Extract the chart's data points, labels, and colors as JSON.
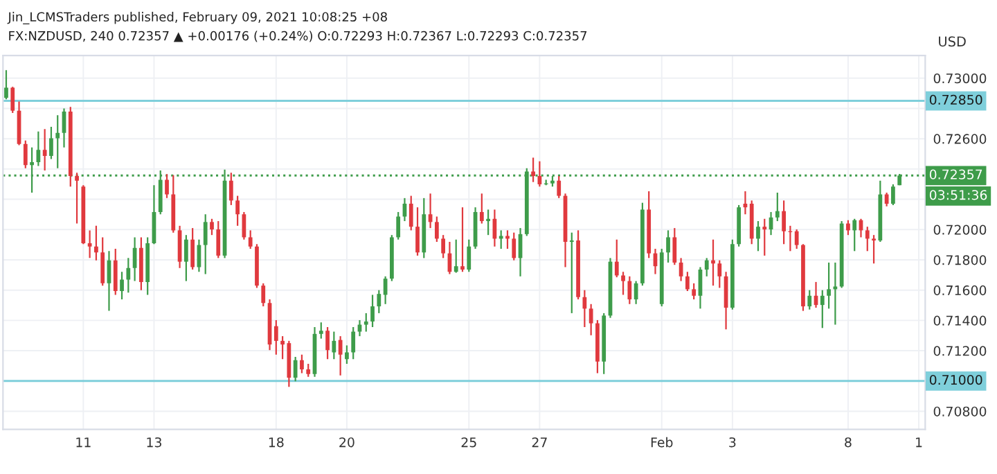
{
  "chart_data": {
    "type": "candlestick",
    "title": "Jin_LCMSTraders published, February 09, 2021 10:08:25 +08",
    "subtitle": "FX:NZDUSD, 240 0.72357 ▲ +0.00176 (+0.24%) O:0.72293 H:0.72367 L:0.72293 C:0.72357",
    "annotations": [
      "USD",
      "03:51:36"
    ],
    "categories": [
      null,
      null,
      null,
      null,
      null,
      null,
      null,
      null,
      null,
      null,
      null,
      null,
      "11",
      null,
      null,
      null,
      null,
      null,
      null,
      null,
      null,
      null,
      null,
      "13",
      null,
      null,
      null,
      null,
      null,
      null,
      null,
      null,
      null,
      null,
      null,
      null,
      null,
      null,
      null,
      null,
      null,
      null,
      "18",
      null,
      null,
      null,
      null,
      null,
      null,
      null,
      null,
      null,
      null,
      "20",
      null,
      null,
      null,
      null,
      null,
      null,
      null,
      null,
      null,
      null,
      null,
      null,
      null,
      null,
      null,
      null,
      null,
      null,
      "25",
      null,
      null,
      null,
      null,
      null,
      null,
      null,
      null,
      null,
      null,
      "27",
      null,
      null,
      null,
      null,
      null,
      null,
      null,
      null,
      null,
      null,
      null,
      null,
      null,
      null,
      null,
      null,
      null,
      null,
      "Feb",
      null,
      null,
      null,
      null,
      null,
      null,
      null,
      null,
      null,
      null,
      "3",
      null,
      null,
      null,
      null,
      null,
      null,
      null,
      null,
      null,
      null,
      null,
      null,
      null,
      null,
      null,
      null,
      null,
      "8",
      null,
      null,
      null,
      null,
      null,
      null,
      null,
      null,
      null,
      null,
      "1"
    ],
    "ohlc": [
      [
        0.7287,
        0.73053,
        0.72861,
        0.72937
      ],
      [
        0.72937,
        0.72943,
        0.7277,
        0.72785
      ],
      [
        0.72785,
        0.72846,
        0.72557,
        0.72566
      ],
      [
        0.72566,
        0.72588,
        0.72405,
        0.72426
      ],
      [
        0.72426,
        0.72542,
        0.72244,
        0.72445
      ],
      [
        0.72445,
        0.72648,
        0.7242,
        0.72527
      ],
      [
        0.72527,
        0.72664,
        0.7239,
        0.72487
      ],
      [
        0.72487,
        0.72679,
        0.72466,
        0.72603
      ],
      [
        0.72603,
        0.72755,
        0.72405,
        0.72639
      ],
      [
        0.72639,
        0.728,
        0.72542,
        0.72779
      ],
      [
        0.72779,
        0.7281,
        0.72284,
        0.72354
      ],
      [
        0.72354,
        0.72375,
        0.7204,
        0.72323
      ],
      [
        0.72284,
        0.72293,
        0.71904,
        0.7191
      ],
      [
        0.7191,
        0.71995,
        0.71812,
        0.71888
      ],
      [
        0.71888,
        0.72025,
        0.71797,
        0.71849
      ],
      [
        0.71849,
        0.71949,
        0.7163,
        0.71645
      ],
      [
        0.71645,
        0.71858,
        0.71463,
        0.71797
      ],
      [
        0.71797,
        0.71873,
        0.71569,
        0.71594
      ],
      [
        0.71594,
        0.71721,
        0.71539,
        0.7167
      ],
      [
        0.7167,
        0.71812,
        0.71584,
        0.71746
      ],
      [
        0.71746,
        0.71949,
        0.7166,
        0.71879
      ],
      [
        0.71879,
        0.71949,
        0.716,
        0.71654
      ],
      [
        0.71654,
        0.71949,
        0.71569,
        0.7191
      ],
      [
        0.7191,
        0.72293,
        0.71904,
        0.72116
      ],
      [
        0.72116,
        0.7239,
        0.72101,
        0.72329
      ],
      [
        0.72329,
        0.72366,
        0.72208,
        0.72232
      ],
      [
        0.72232,
        0.7236,
        0.7198,
        0.71995
      ],
      [
        0.71995,
        0.72025,
        0.71746,
        0.71788
      ],
      [
        0.71788,
        0.71964,
        0.7166,
        0.71934
      ],
      [
        0.71934,
        0.7201,
        0.71736,
        0.71752
      ],
      [
        0.71752,
        0.71934,
        0.71721,
        0.71898
      ],
      [
        0.71898,
        0.72101,
        0.71706,
        0.7205
      ],
      [
        0.7205,
        0.72071,
        0.71964,
        0.72001
      ],
      [
        0.72001,
        0.72056,
        0.71812,
        0.71828
      ],
      [
        0.71828,
        0.72396,
        0.71812,
        0.72323
      ],
      [
        0.72323,
        0.72375,
        0.72162,
        0.72192
      ],
      [
        0.72192,
        0.72223,
        0.72025,
        0.72101
      ],
      [
        0.72101,
        0.72116,
        0.71934,
        0.71949
      ],
      [
        0.71949,
        0.71995,
        0.71873,
        0.71888
      ],
      [
        0.71888,
        0.71904,
        0.71615,
        0.7163
      ],
      [
        0.7163,
        0.71645,
        0.71493,
        0.71515
      ],
      [
        0.71515,
        0.71539,
        0.71204,
        0.71241
      ],
      [
        0.71362,
        0.71402,
        0.71174,
        0.71265
      ],
      [
        0.71265,
        0.71296,
        0.71144,
        0.71241
      ],
      [
        0.7125,
        0.71265,
        0.70961,
        0.71022
      ],
      [
        0.71022,
        0.71159,
        0.70998,
        0.71138
      ],
      [
        0.71138,
        0.71174,
        0.71052,
        0.71077
      ],
      [
        0.71077,
        0.71113,
        0.71028,
        0.71046
      ],
      [
        0.71046,
        0.71356,
        0.71028,
        0.71311
      ],
      [
        0.71311,
        0.71387,
        0.7128,
        0.71332
      ],
      [
        0.71332,
        0.71356,
        0.71144,
        0.71204
      ],
      [
        0.71189,
        0.71326,
        0.71144,
        0.71265
      ],
      [
        0.71271,
        0.71296,
        0.71037,
        0.71174
      ],
      [
        0.71144,
        0.71235,
        0.71113,
        0.71189
      ],
      [
        0.71189,
        0.71356,
        0.71144,
        0.71326
      ],
      [
        0.71326,
        0.71402,
        0.71296,
        0.71372
      ],
      [
        0.71372,
        0.71448,
        0.71326,
        0.71393
      ],
      [
        0.71393,
        0.71569,
        0.71356,
        0.71493
      ],
      [
        0.71493,
        0.716,
        0.71448,
        0.71575
      ],
      [
        0.71569,
        0.71691,
        0.71508,
        0.71676
      ],
      [
        0.71676,
        0.71964,
        0.7166,
        0.71949
      ],
      [
        0.71949,
        0.72116,
        0.71934,
        0.72086
      ],
      [
        0.72086,
        0.72208,
        0.72056,
        0.72171
      ],
      [
        0.72171,
        0.72223,
        0.71995,
        0.72019
      ],
      [
        0.72019,
        0.72147,
        0.71828,
        0.71849
      ],
      [
        0.71849,
        0.72208,
        0.71812,
        0.72101
      ],
      [
        0.72101,
        0.72238,
        0.7201,
        0.7205
      ],
      [
        0.7205,
        0.72086,
        0.71919,
        0.7194
      ],
      [
        0.7194,
        0.71964,
        0.71812,
        0.71843
      ],
      [
        0.71843,
        0.71919,
        0.71706,
        0.71721
      ],
      [
        0.71721,
        0.71934,
        0.71715,
        0.71758
      ],
      [
        0.71758,
        0.72147,
        0.71721,
        0.71736
      ],
      [
        0.71736,
        0.71934,
        0.71721,
        0.71888
      ],
      [
        0.71888,
        0.72147,
        0.71873,
        0.72116
      ],
      [
        0.72116,
        0.72238,
        0.7204,
        0.72056
      ],
      [
        0.72056,
        0.72132,
        0.71964,
        0.72071
      ],
      [
        0.72071,
        0.72132,
        0.71888,
        0.7194
      ],
      [
        0.7194,
        0.71995,
        0.71873,
        0.71958
      ],
      [
        0.71958,
        0.71995,
        0.71873,
        0.7194
      ],
      [
        0.7194,
        0.7198,
        0.71797,
        0.71812
      ],
      [
        0.71812,
        0.7201,
        0.71691,
        0.7197
      ],
      [
        0.7197,
        0.72405,
        0.71958,
        0.72384
      ],
      [
        0.72384,
        0.72475,
        0.72314,
        0.72354
      ],
      [
        0.72354,
        0.72451,
        0.72284,
        0.72299
      ],
      [
        0.72299,
        0.72329,
        0.72293,
        0.72305
      ],
      [
        0.72305,
        0.72354,
        0.72284,
        0.72323
      ],
      [
        0.72323,
        0.72354,
        0.72208,
        0.72223
      ],
      [
        0.72223,
        0.72238,
        0.71752,
        0.71919
      ],
      [
        0.71919,
        0.7198,
        0.71448,
        0.71928
      ],
      [
        0.71928,
        0.71995,
        0.71539,
        0.71554
      ],
      [
        0.71554,
        0.716,
        0.71356,
        0.71478
      ],
      [
        0.71478,
        0.71508,
        0.71302,
        0.71381
      ],
      [
        0.71381,
        0.71402,
        0.71052,
        0.71128
      ],
      [
        0.71128,
        0.71448,
        0.71046,
        0.71432
      ],
      [
        0.71432,
        0.71812,
        0.71417,
        0.71788
      ],
      [
        0.71788,
        0.71934,
        0.71685,
        0.71697
      ],
      [
        0.71697,
        0.71721,
        0.71569,
        0.7166
      ],
      [
        0.7166,
        0.71691,
        0.71508,
        0.71539
      ],
      [
        0.71539,
        0.7166,
        0.71508,
        0.71645
      ],
      [
        0.71645,
        0.72177,
        0.7163,
        0.72132
      ],
      [
        0.72132,
        0.72253,
        0.71812,
        0.71843
      ],
      [
        0.71843,
        0.71873,
        0.71706,
        0.71758
      ],
      [
        0.71508,
        0.71873,
        0.71493,
        0.71849
      ],
      [
        0.71849,
        0.71995,
        0.71782,
        0.71949
      ],
      [
        0.71949,
        0.7201,
        0.71767,
        0.71782
      ],
      [
        0.71782,
        0.71812,
        0.7166,
        0.71691
      ],
      [
        0.71691,
        0.71721,
        0.71594,
        0.71606
      ],
      [
        0.71606,
        0.71645,
        0.71539,
        0.71563
      ],
      [
        0.71563,
        0.71752,
        0.71478,
        0.71736
      ],
      [
        0.71736,
        0.71812,
        0.71691,
        0.71797
      ],
      [
        0.71797,
        0.71934,
        0.7163,
        0.71776
      ],
      [
        0.71776,
        0.71797,
        0.71615,
        0.71691
      ],
      [
        0.71691,
        0.71721,
        0.71341,
        0.71484
      ],
      [
        0.71484,
        0.71934,
        0.71472,
        0.71904
      ],
      [
        0.71904,
        0.72162,
        0.71888,
        0.72147
      ],
      [
        0.72171,
        0.72253,
        0.72101,
        0.72147
      ],
      [
        0.72171,
        0.72192,
        0.71904,
        0.7194
      ],
      [
        0.7194,
        0.72056,
        0.71858,
        0.72019
      ],
      [
        0.72019,
        0.72071,
        0.71828,
        0.72001
      ],
      [
        0.72001,
        0.72116,
        0.71964,
        0.7208
      ],
      [
        0.7208,
        0.72244,
        0.72056,
        0.72122
      ],
      [
        0.72122,
        0.72192,
        0.71904,
        0.71989
      ],
      [
        0.71989,
        0.72025,
        0.71858,
        0.71983
      ],
      [
        0.71989,
        0.72001,
        0.71873,
        0.71898
      ],
      [
        0.71898,
        0.71904,
        0.71463,
        0.71493
      ],
      [
        0.71493,
        0.716,
        0.71472,
        0.71563
      ],
      [
        0.71563,
        0.71654,
        0.71484,
        0.71502
      ],
      [
        0.71502,
        0.716,
        0.7135,
        0.71563
      ],
      [
        0.71563,
        0.71782,
        0.71478,
        0.71606
      ],
      [
        0.71606,
        0.71782,
        0.71372,
        0.71624
      ],
      [
        0.71624,
        0.72056,
        0.71615,
        0.7204
      ],
      [
        0.7204,
        0.72062,
        0.71964,
        0.71995
      ],
      [
        0.71995,
        0.72071,
        0.71858,
        0.72062
      ],
      [
        0.72062,
        0.72071,
        0.71949,
        0.71995
      ],
      [
        0.71995,
        0.72019,
        0.71858,
        0.7194
      ],
      [
        0.7194,
        0.71964,
        0.71776,
        0.71928
      ],
      [
        0.71928,
        0.72323,
        0.71919,
        0.72232
      ],
      [
        0.72232,
        0.72244,
        0.72153,
        0.72171
      ],
      [
        0.72171,
        0.72299,
        0.72162,
        0.72284
      ],
      [
        0.72293,
        0.72367,
        0.72293,
        0.72357
      ],
      null,
      null,
      null
    ],
    "colors": [
      "#3e9c4a",
      "#e0393e",
      "#e0393e",
      "#e0393e",
      "#3e9c4a",
      "#3e9c4a",
      "#e0393e",
      "#3e9c4a",
      "#3e9c4a",
      "#3e9c4a",
      "#e0393e",
      "#e0393e",
      "#e0393e",
      "#e0393e",
      "#e0393e",
      "#e0393e",
      "#3e9c4a",
      "#e0393e",
      "#3e9c4a",
      "#3e9c4a",
      "#3e9c4a",
      "#e0393e",
      "#3e9c4a",
      "#3e9c4a",
      "#3e9c4a",
      "#e0393e",
      "#e0393e",
      "#e0393e",
      "#3e9c4a",
      "#e0393e",
      "#3e9c4a",
      "#3e9c4a",
      "#e0393e",
      "#e0393e",
      "#3e9c4a",
      "#e0393e",
      "#e0393e",
      "#e0393e",
      "#e0393e",
      "#e0393e",
      "#e0393e",
      "#e0393e",
      "#e0393e",
      "#e0393e",
      "#e0393e",
      "#3e9c4a",
      "#e0393e",
      "#e0393e",
      "#3e9c4a",
      "#3e9c4a",
      "#e0393e",
      "#3e9c4a",
      "#e0393e",
      "#3e9c4a",
      "#3e9c4a",
      "#3e9c4a",
      "#3e9c4a",
      "#3e9c4a",
      "#3e9c4a",
      "#3e9c4a",
      "#3e9c4a",
      "#3e9c4a",
      "#3e9c4a",
      "#e0393e",
      "#e0393e",
      "#3e9c4a",
      "#e0393e",
      "#e0393e",
      "#e0393e",
      "#e0393e",
      "#3e9c4a",
      "#e0393e",
      "#3e9c4a",
      "#3e9c4a",
      "#e0393e",
      "#3e9c4a",
      "#e0393e",
      "#3e9c4a",
      "#e0393e",
      "#e0393e",
      "#3e9c4a",
      "#3e9c4a",
      "#e0393e",
      "#e0393e",
      "#3e9c4a",
      "#3e9c4a",
      "#e0393e",
      "#e0393e",
      "#3e9c4a",
      "#e0393e",
      "#e0393e",
      "#e0393e",
      "#e0393e",
      "#3e9c4a",
      "#3e9c4a",
      "#e0393e",
      "#e0393e",
      "#e0393e",
      "#3e9c4a",
      "#3e9c4a",
      "#e0393e",
      "#e0393e",
      "#3e9c4a",
      "#3e9c4a",
      "#e0393e",
      "#e0393e",
      "#e0393e",
      "#e0393e",
      "#3e9c4a",
      "#3e9c4a",
      "#e0393e",
      "#e0393e",
      "#e0393e",
      "#3e9c4a",
      "#3e9c4a",
      "#e0393e",
      "#e0393e",
      "#3e9c4a",
      "#e0393e",
      "#3e9c4a",
      "#3e9c4a",
      "#e0393e",
      "#e0393e",
      "#e0393e",
      "#e0393e",
      "#3e9c4a",
      "#e0393e",
      "#3e9c4a",
      "#3e9c4a",
      "#3e9c4a",
      "#3e9c4a",
      "#e0393e",
      "#3e9c4a",
      "#e0393e",
      "#e0393e",
      "#e0393e",
      "#3e9c4a",
      "#e0393e",
      "#3e9c4a",
      "#3e9c4a",
      null,
      null,
      null
    ],
    "ylim": [
      0.7068,
      0.7315
    ],
    "yticks": [
      {
        "value": 0.708,
        "label": "0.70800"
      },
      {
        "value": 0.71,
        "label": null
      },
      {
        "value": 0.712,
        "label": "0.71200"
      },
      {
        "value": 0.714,
        "label": "0.71400"
      },
      {
        "value": 0.716,
        "label": "0.71600"
      },
      {
        "value": 0.718,
        "label": "0.71800"
      },
      {
        "value": 0.72,
        "label": "0.72000"
      },
      {
        "value": 0.722,
        "label": null
      },
      {
        "value": 0.724,
        "label": null
      },
      {
        "value": 0.726,
        "label": "0.72600"
      },
      {
        "value": 0.728,
        "label": null
      },
      {
        "value": 0.73,
        "label": "0.73000"
      }
    ],
    "ref_lines": [
      {
        "axis": "y",
        "value": 0.7285,
        "label": "0.72850",
        "color": "#7fcfdb",
        "line_style": "solid"
      },
      {
        "axis": "y",
        "value": 0.71,
        "label": "0.71000",
        "color": "#7fcfdb",
        "line_style": "solid"
      },
      {
        "axis": "y",
        "value": 0.72357,
        "label": "0.72357",
        "color": "#3e9c4a",
        "line_style": "dotted"
      }
    ],
    "grid": true,
    "legend": false
  }
}
